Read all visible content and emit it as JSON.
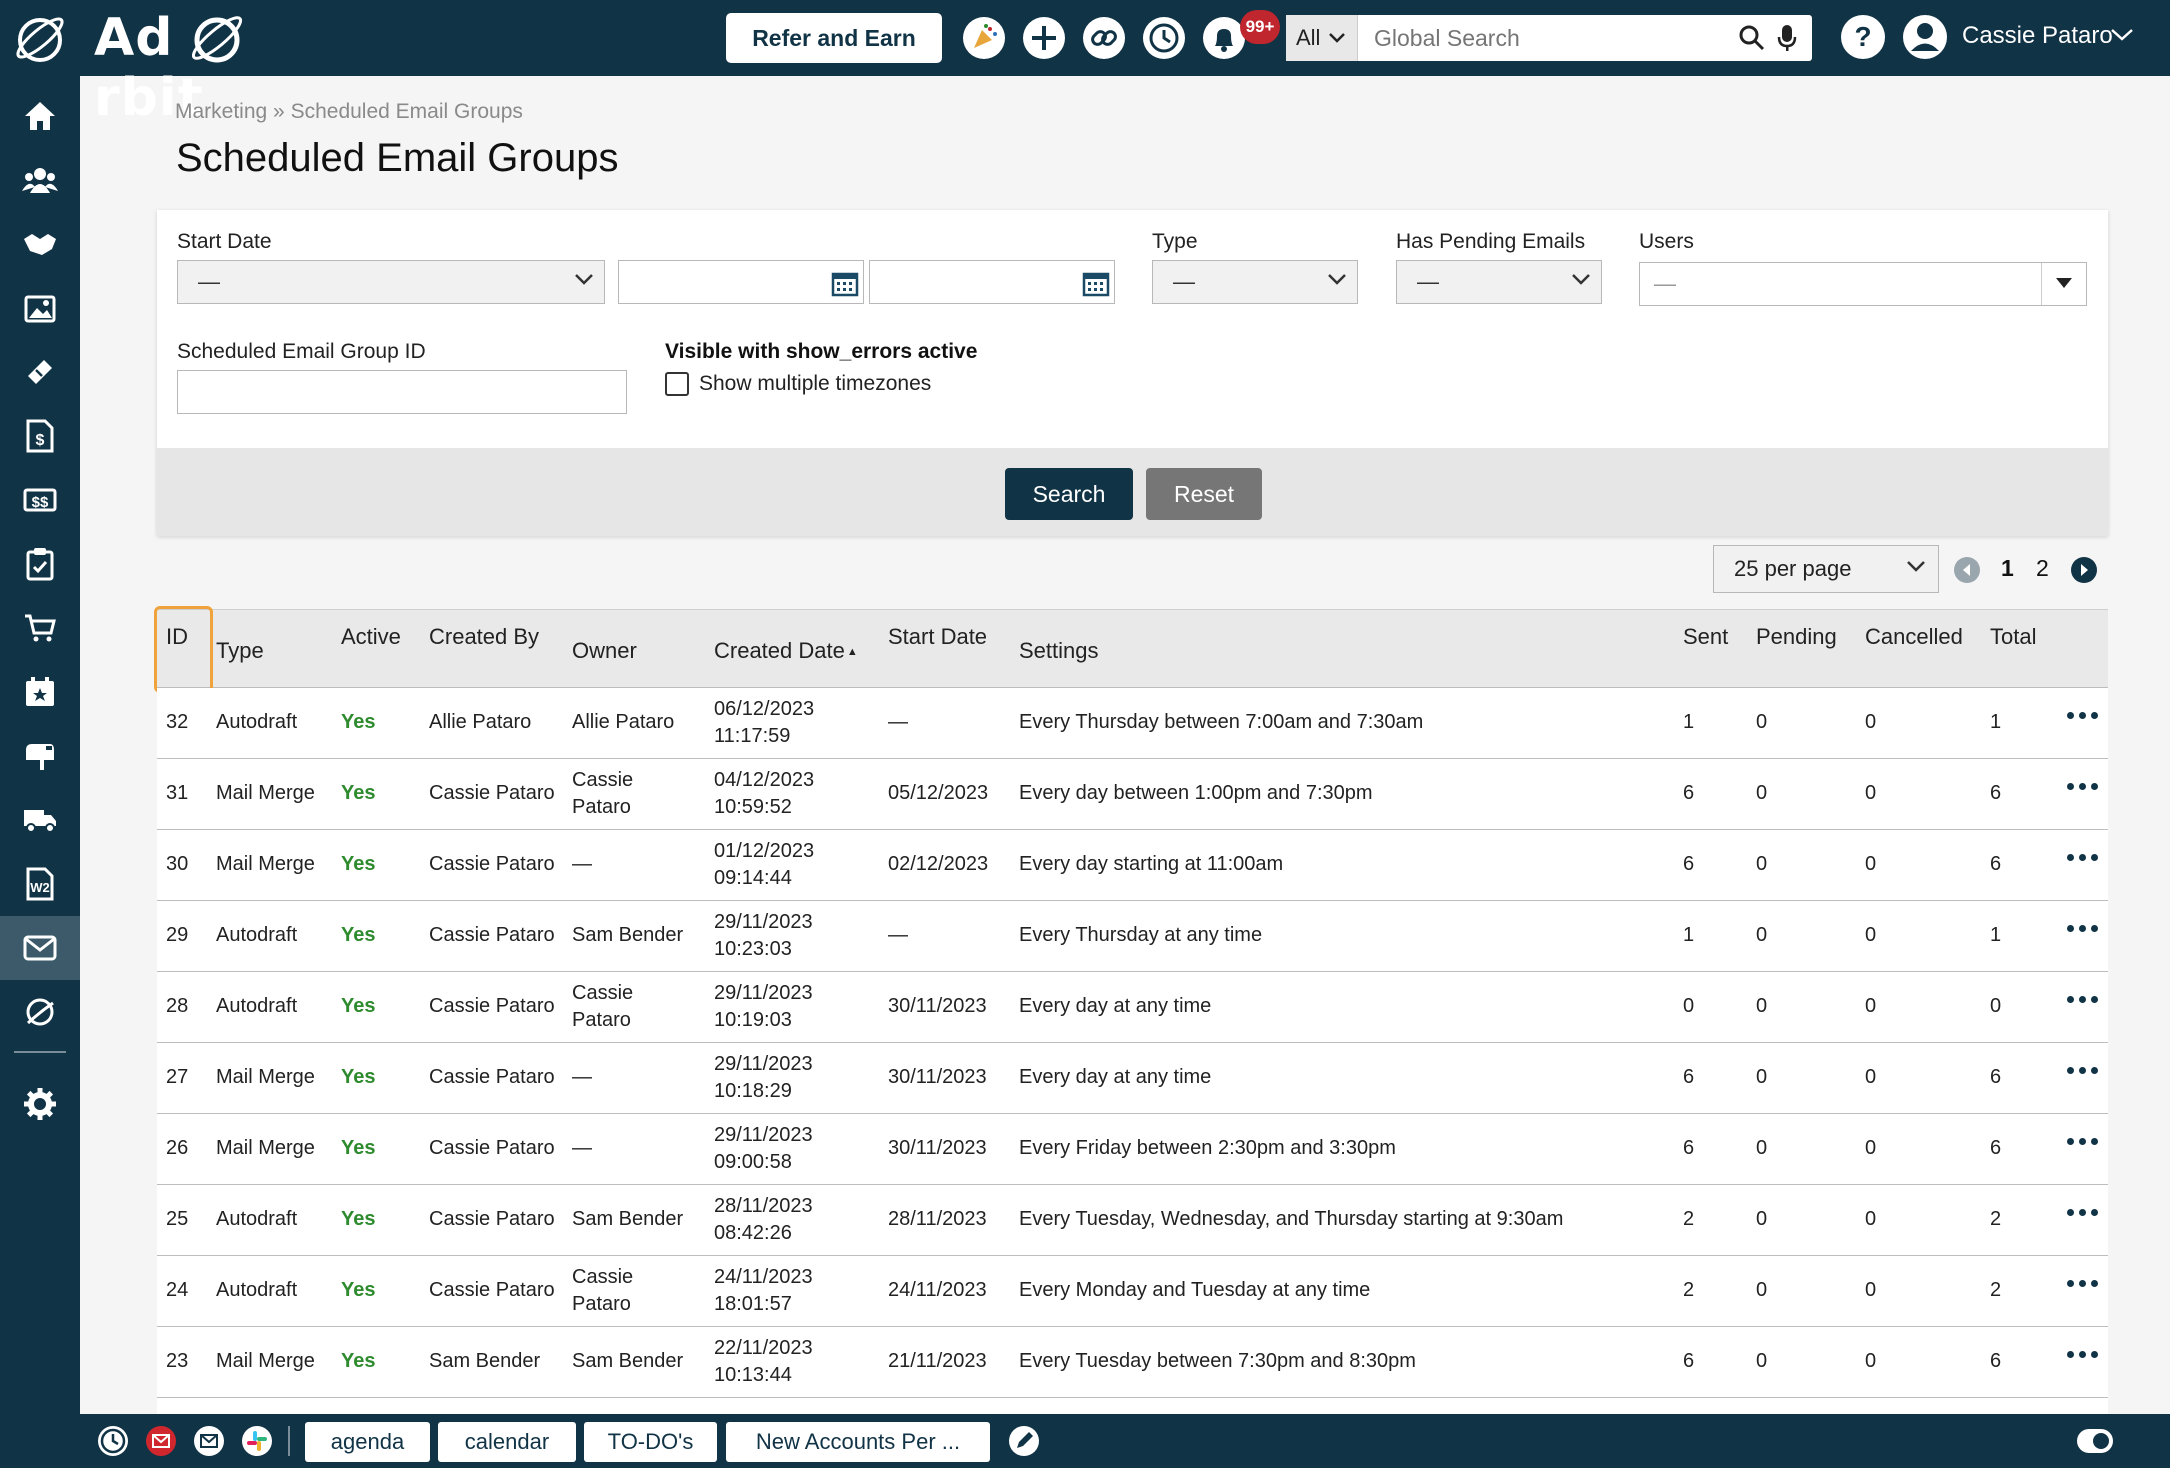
{
  "app": {
    "logo_text": "Ad  rbit"
  },
  "topbar": {
    "refer_label": "Refer and Earn",
    "notification_count": "99+",
    "search_scope": "All",
    "search_placeholder": "Global Search",
    "user_name": "Cassie Pataro"
  },
  "sidebar": {
    "items": [
      "home-icon",
      "contacts-icon",
      "handshake-icon",
      "gallery-icon",
      "ticket-icon",
      "invoice-icon",
      "billing-icon",
      "clipboard-icon",
      "cart-icon",
      "calendar-star-icon",
      "mailbox-icon",
      "truck-icon",
      "w2-icon",
      "mail-icon",
      "orbit-icon",
      "gear-icon"
    ],
    "active": "mail-icon"
  },
  "breadcrumb": {
    "parent": "Marketing",
    "separator": "»",
    "current": "Scheduled Email Groups"
  },
  "page_title": "Scheduled Email Groups",
  "filters": {
    "start_date_label": "Start Date",
    "start_date_value": "—",
    "type_label": "Type",
    "type_value": "—",
    "pending_label": "Has Pending Emails",
    "pending_value": "—",
    "users_label": "Users",
    "users_value": "—",
    "group_id_label": "Scheduled Email Group ID",
    "show_errors_label": "Visible with show_errors active",
    "multi_tz_label": "Show multiple timezones",
    "search_label": "Search",
    "reset_label": "Reset"
  },
  "pagination": {
    "per_page": "25 per page",
    "pages": [
      "1",
      "2"
    ]
  },
  "table": {
    "headers": {
      "id": "ID",
      "type": "Type",
      "active": "Active",
      "created_by": "Created By",
      "owner": "Owner",
      "created_date": "Created Date",
      "start_date": "Start Date",
      "settings": "Settings",
      "sent": "Sent",
      "pending": "Pending",
      "cancelled": "Cancelled",
      "total": "Total"
    },
    "rows": [
      {
        "id": "32",
        "type": "Autodraft",
        "active": "Yes",
        "created_by": "Allie Pataro",
        "owner": [
          "Allie Pataro"
        ],
        "created_date": "06/12/2023",
        "created_time": "11:17:59",
        "start_date": "—",
        "settings": "Every Thursday between 7:00am and 7:30am",
        "sent": "1",
        "pending": "0",
        "cancelled": "0",
        "total": "1"
      },
      {
        "id": "31",
        "type": "Mail Merge",
        "active": "Yes",
        "created_by": "Cassie Pataro",
        "owner": [
          "Cassie",
          "Pataro"
        ],
        "created_date": "04/12/2023",
        "created_time": "10:59:52",
        "start_date": "05/12/2023",
        "settings": "Every day between 1:00pm and 7:30pm",
        "sent": "6",
        "pending": "0",
        "cancelled": "0",
        "total": "6"
      },
      {
        "id": "30",
        "type": "Mail Merge",
        "active": "Yes",
        "created_by": "Cassie Pataro",
        "owner": [
          "—"
        ],
        "created_date": "01/12/2023",
        "created_time": "09:14:44",
        "start_date": "02/12/2023",
        "settings": "Every day starting at 11:00am",
        "sent": "6",
        "pending": "0",
        "cancelled": "0",
        "total": "6"
      },
      {
        "id": "29",
        "type": "Autodraft",
        "active": "Yes",
        "created_by": "Cassie Pataro",
        "owner": [
          "Sam Bender"
        ],
        "created_date": "29/11/2023",
        "created_time": "10:23:03",
        "start_date": "—",
        "settings": "Every Thursday at any time",
        "sent": "1",
        "pending": "0",
        "cancelled": "0",
        "total": "1"
      },
      {
        "id": "28",
        "type": "Autodraft",
        "active": "Yes",
        "created_by": "Cassie Pataro",
        "owner": [
          "Cassie",
          "Pataro"
        ],
        "created_date": "29/11/2023",
        "created_time": "10:19:03",
        "start_date": "30/11/2023",
        "settings": "Every day at any time",
        "sent": "0",
        "pending": "0",
        "cancelled": "0",
        "total": "0"
      },
      {
        "id": "27",
        "type": "Mail Merge",
        "active": "Yes",
        "created_by": "Cassie Pataro",
        "owner": [
          "—"
        ],
        "created_date": "29/11/2023",
        "created_time": "10:18:29",
        "start_date": "30/11/2023",
        "settings": "Every day at any time",
        "sent": "6",
        "pending": "0",
        "cancelled": "0",
        "total": "6"
      },
      {
        "id": "26",
        "type": "Mail Merge",
        "active": "Yes",
        "created_by": "Cassie Pataro",
        "owner": [
          "—"
        ],
        "created_date": "29/11/2023",
        "created_time": "09:00:58",
        "start_date": "30/11/2023",
        "settings": "Every Friday between 2:30pm and 3:30pm",
        "sent": "6",
        "pending": "0",
        "cancelled": "0",
        "total": "6"
      },
      {
        "id": "25",
        "type": "Autodraft",
        "active": "Yes",
        "created_by": "Cassie Pataro",
        "owner": [
          "Sam Bender"
        ],
        "created_date": "28/11/2023",
        "created_time": "08:42:26",
        "start_date": "28/11/2023",
        "settings": "Every Tuesday, Wednesday, and Thursday starting at 9:30am",
        "sent": "2",
        "pending": "0",
        "cancelled": "0",
        "total": "2"
      },
      {
        "id": "24",
        "type": "Autodraft",
        "active": "Yes",
        "created_by": "Cassie Pataro",
        "owner": [
          "Cassie",
          "Pataro"
        ],
        "created_date": "24/11/2023",
        "created_time": "18:01:57",
        "start_date": "24/11/2023",
        "settings": "Every Monday and Tuesday at any time",
        "sent": "2",
        "pending": "0",
        "cancelled": "0",
        "total": "2"
      },
      {
        "id": "23",
        "type": "Mail Merge",
        "active": "Yes",
        "created_by": "Sam Bender",
        "owner": [
          "Sam Bender"
        ],
        "created_date": "22/11/2023",
        "created_time": "10:13:44",
        "start_date": "21/11/2023",
        "settings": "Every Tuesday between 7:30pm and 8:30pm",
        "sent": "6",
        "pending": "0",
        "cancelled": "0",
        "total": "6"
      }
    ]
  },
  "bottombar": {
    "tabs": [
      "agenda",
      "calendar",
      "TO-DO's",
      "New Accounts Per ..."
    ]
  }
}
